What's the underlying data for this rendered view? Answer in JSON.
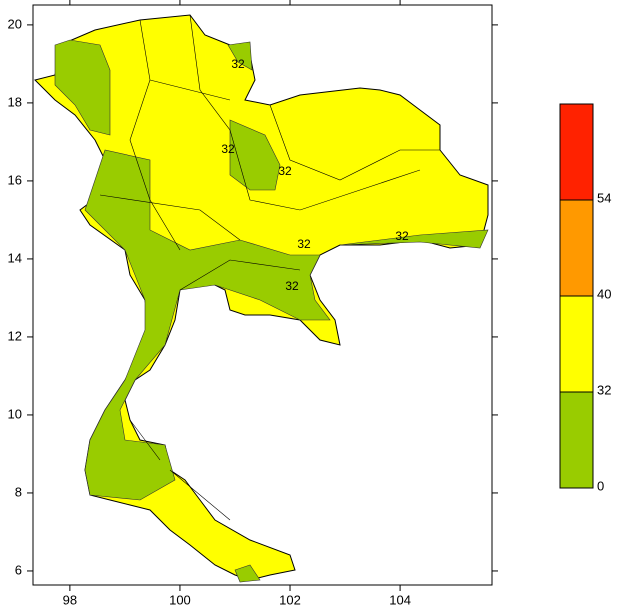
{
  "chart_data": {
    "type": "contour-map",
    "xlim": [
      97.33,
      105.67
    ],
    "xticks": [
      98,
      100,
      102,
      104
    ],
    "ylim": [
      5.64,
      20.51
    ],
    "yticks": [
      6,
      8,
      10,
      12,
      14,
      16,
      18,
      20
    ],
    "contour_labels": [
      "32",
      "32",
      "32",
      "32",
      "32",
      "32"
    ],
    "colorbar": {
      "levels": [
        0,
        32,
        40,
        54
      ],
      "colors": [
        "#99cc00",
        "#ffff00",
        "#ff9900",
        "#ff2200"
      ]
    }
  }
}
